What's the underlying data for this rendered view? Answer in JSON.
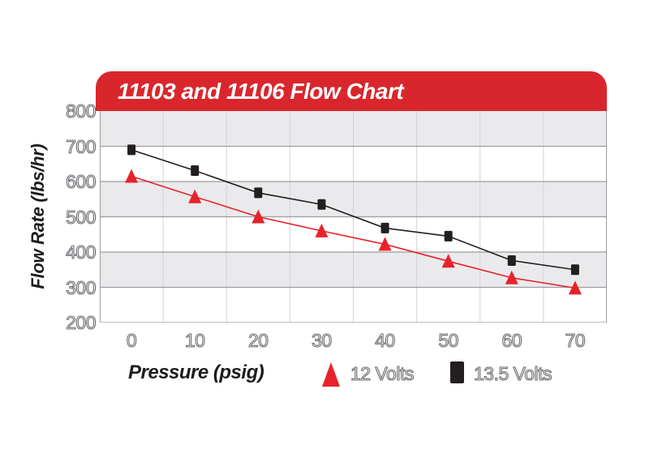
{
  "title": "11103 and 11106 Flow Chart",
  "chart_data": {
    "type": "line",
    "title": "11103 and 11106 Flow Chart",
    "xlabel": "Pressure (psig)",
    "ylabel": "Flow Rate (lbs/hr)",
    "x": [
      0,
      10,
      20,
      30,
      40,
      50,
      60,
      70
    ],
    "x_ticks": [
      "0",
      "10",
      "20",
      "30",
      "40",
      "50",
      "60",
      "70"
    ],
    "y_ticks": [
      800,
      700,
      600,
      500,
      400,
      300,
      200
    ],
    "ylim": [
      200,
      800
    ],
    "grid": "horizontal lines at 100s, alternating shaded bands, vertical column lines",
    "legend_position": "bottom",
    "series": [
      {
        "name": "12 Volts",
        "marker": "triangle",
        "color": "#e8222a",
        "values": [
          615,
          557,
          500,
          460,
          422,
          374,
          327,
          298
        ]
      },
      {
        "name": "13.5 Volts",
        "marker": "square",
        "color": "#231f20",
        "values": [
          690,
          631,
          568,
          535,
          468,
          445,
          376,
          350
        ]
      }
    ]
  },
  "colors": {
    "banner": "#d9262c",
    "band_shaded": "#eaeaed",
    "band_plain": "#ffffff",
    "grid_major": "#9d9da1",
    "grid_vertical": "#d4d4d8",
    "axis_text_outline": "#6e6e73",
    "axis_title_text": "#1d1d1f"
  },
  "legend": {
    "items": [
      {
        "label": "12 Volts",
        "marker": "red-triangle"
      },
      {
        "label": "13.5 Volts",
        "marker": "black-square"
      }
    ]
  }
}
